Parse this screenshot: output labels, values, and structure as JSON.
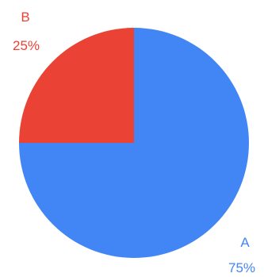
{
  "chart_data": {
    "type": "pie",
    "slices": [
      {
        "label": "A",
        "value": 75,
        "value_label": "75%",
        "color": "#4285f4"
      },
      {
        "label": "B",
        "value": 25,
        "value_label": "25%",
        "color": "#ea4335"
      }
    ],
    "legend": "none"
  }
}
